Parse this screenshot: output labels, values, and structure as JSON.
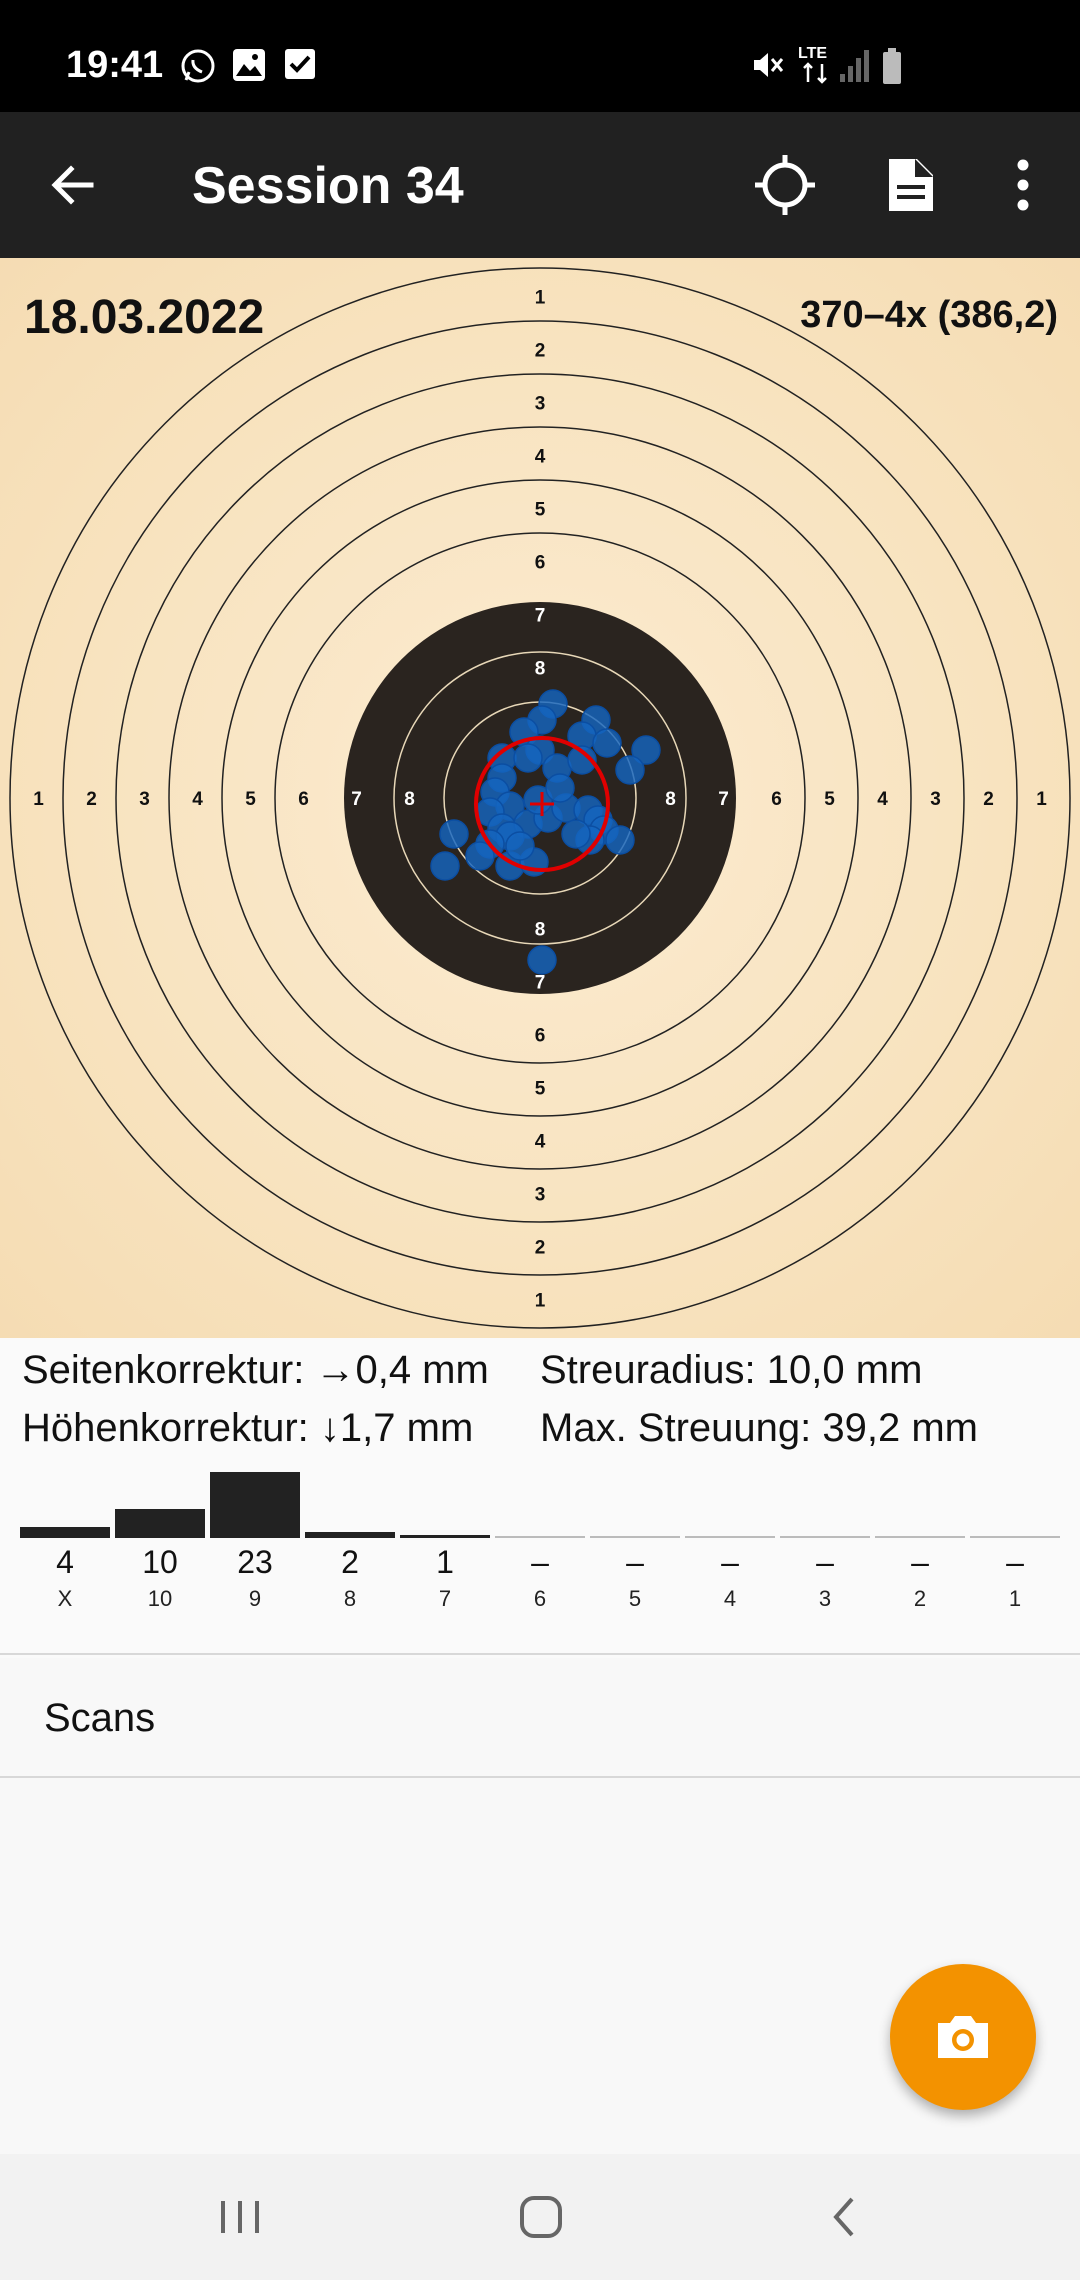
{
  "status_bar": {
    "time": "19:41",
    "left_icons": [
      "whatsapp-icon",
      "gallery-icon",
      "checkbox-icon"
    ],
    "right_icons": [
      "mute-icon",
      "lte-icon",
      "signal-icon",
      "battery-icon"
    ],
    "network": "LTE"
  },
  "app_bar": {
    "title": "Session 34",
    "back_icon": "arrow-left-icon",
    "actions": [
      "crosshair-icon",
      "document-icon",
      "more-vert-icon"
    ]
  },
  "target": {
    "date": "18.03.2022",
    "score": "370–4x (386,2)",
    "ring_numbers": [
      "1",
      "2",
      "3",
      "4",
      "5",
      "6",
      "7",
      "8"
    ],
    "colors": {
      "paper": "#f8e3bf",
      "black": "#2a241f",
      "hit": "#1565c0",
      "group_circle": "#e00000"
    }
  },
  "stats": {
    "side_correction": "Seitenkorrektur: →0,4 mm",
    "height_correction": "Höhenkorrektur: ↓1,7 mm",
    "spread_radius": "Streuradius: 10,0 mm",
    "max_spread": "Max. Streuung: 39,2 mm"
  },
  "histogram": [
    {
      "count": "4",
      "label": "X",
      "value": 4
    },
    {
      "count": "10",
      "label": "10",
      "value": 10
    },
    {
      "count": "23",
      "label": "9",
      "value": 23
    },
    {
      "count": "2",
      "label": "8",
      "value": 2
    },
    {
      "count": "1",
      "label": "7",
      "value": 1
    },
    {
      "count": "–",
      "label": "6",
      "value": 0
    },
    {
      "count": "–",
      "label": "5",
      "value": 0
    },
    {
      "count": "–",
      "label": "4",
      "value": 0
    },
    {
      "count": "–",
      "label": "3",
      "value": 0
    },
    {
      "count": "–",
      "label": "2",
      "value": 0
    },
    {
      "count": "–",
      "label": "1",
      "value": 0
    }
  ],
  "scans": {
    "label": "Scans"
  },
  "fab": {
    "icon": "camera-icon",
    "color": "#f39200"
  },
  "nav_bar": {
    "buttons": [
      "recents-icon",
      "home-icon",
      "back-icon"
    ]
  }
}
